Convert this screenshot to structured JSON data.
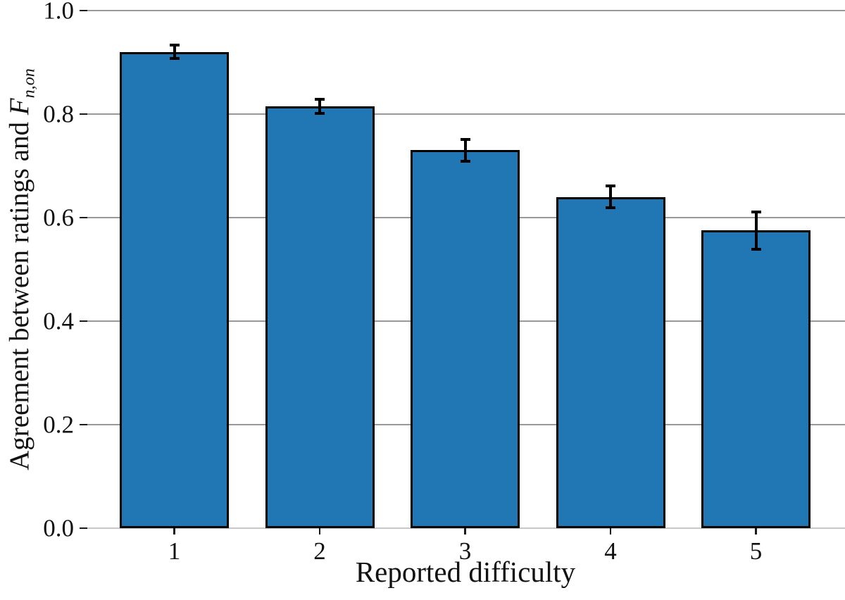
{
  "chart_data": {
    "type": "bar",
    "title": "",
    "xlabel": "Reported difficulty",
    "ylabel_prefix": "Agreement between ratings and ",
    "ylabel_math_symbol": "F",
    "ylabel_math_subscript": "n,on",
    "categories": [
      "1",
      "2",
      "3",
      "4",
      "5"
    ],
    "values": [
      0.92,
      0.815,
      0.73,
      0.64,
      0.575
    ],
    "errors": [
      0.01,
      0.011,
      0.018,
      0.018,
      0.033
    ],
    "ylim": [
      0.0,
      1.0
    ],
    "yticks": [
      {
        "value": 0.0,
        "label": "0.0"
      },
      {
        "value": 0.2,
        "label": "0.2"
      },
      {
        "value": 0.4,
        "label": "0.4"
      },
      {
        "value": 0.6,
        "label": "0.6"
      },
      {
        "value": 0.8,
        "label": "0.8"
      },
      {
        "value": 1.0,
        "label": "1.0"
      }
    ],
    "grid": "horizontal",
    "legend": "none",
    "colors": {
      "bar_fill": "#2177b4",
      "bar_edge": "#000000",
      "error_bar": "#000000",
      "gridline": "#999999",
      "axis_line": "#c8c8c8",
      "tick_mark": "#1a1a1a",
      "text": "#111111"
    }
  }
}
